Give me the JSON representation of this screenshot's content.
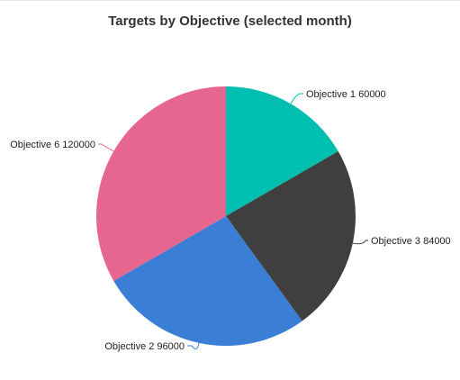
{
  "chart_data": {
    "type": "pie",
    "title": "Targets by Objective (selected month)",
    "slices": [
      {
        "label": "Objective 1",
        "value": 60000,
        "color": "#01BFB0"
      },
      {
        "label": "Objective 3",
        "value": 84000,
        "color": "#3F3F3F"
      },
      {
        "label": "Objective 2",
        "value": 96000,
        "color": "#3A7FD5"
      },
      {
        "label": "Objective 6",
        "value": 120000,
        "color": "#E6668F"
      }
    ],
    "start_angle": "top",
    "direction": "clockwise",
    "legend": "none",
    "data_labels": "outside"
  }
}
